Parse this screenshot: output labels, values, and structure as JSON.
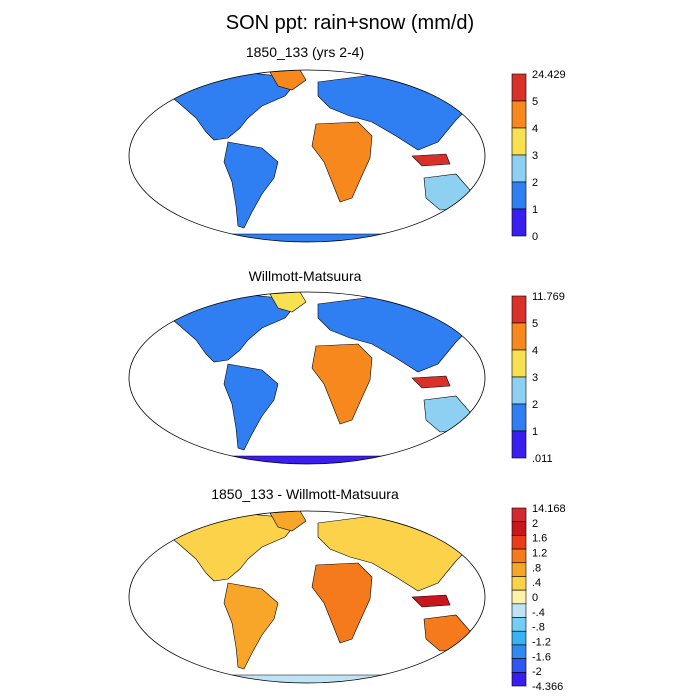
{
  "title": "SON ppt: rain+snow (mm/d)",
  "colors": {
    "seq": [
      "#3a1ef0",
      "#2f7ef2",
      "#8ed0f2",
      "#f8e150",
      "#f7881e",
      "#d9302a"
    ],
    "div": [
      "#3a1ef0",
      "#2f56f0",
      "#2f8bf2",
      "#38b2f4",
      "#74cdf2",
      "#bde3f5",
      "#fdf3a8",
      "#fbd24a",
      "#f8a62a",
      "#f57a1b",
      "#ea3c19",
      "#c8161c",
      "#d02a30"
    ]
  },
  "panels": [
    {
      "title": "1850_133 (yrs 2-4)",
      "scale": "seq",
      "colorbar": {
        "labels": [
          "24.429",
          "5",
          "4",
          "3",
          "2",
          "1",
          "0"
        ]
      }
    },
    {
      "title": "Willmott-Matsuura",
      "scale": "seq",
      "colorbar": {
        "labels": [
          "11.769",
          "5",
          "4",
          "3",
          "2",
          "1",
          ".011"
        ]
      }
    },
    {
      "title": "1850_133 - Willmott-Matsuura",
      "scale": "div",
      "colorbar": {
        "labels": [
          "14.168",
          "2",
          "1.6",
          "1.2",
          ".8",
          ".4",
          "0",
          "-.4",
          "-.8",
          "-1.2",
          "-1.6",
          "-2",
          "-4.366"
        ]
      }
    }
  ]
}
